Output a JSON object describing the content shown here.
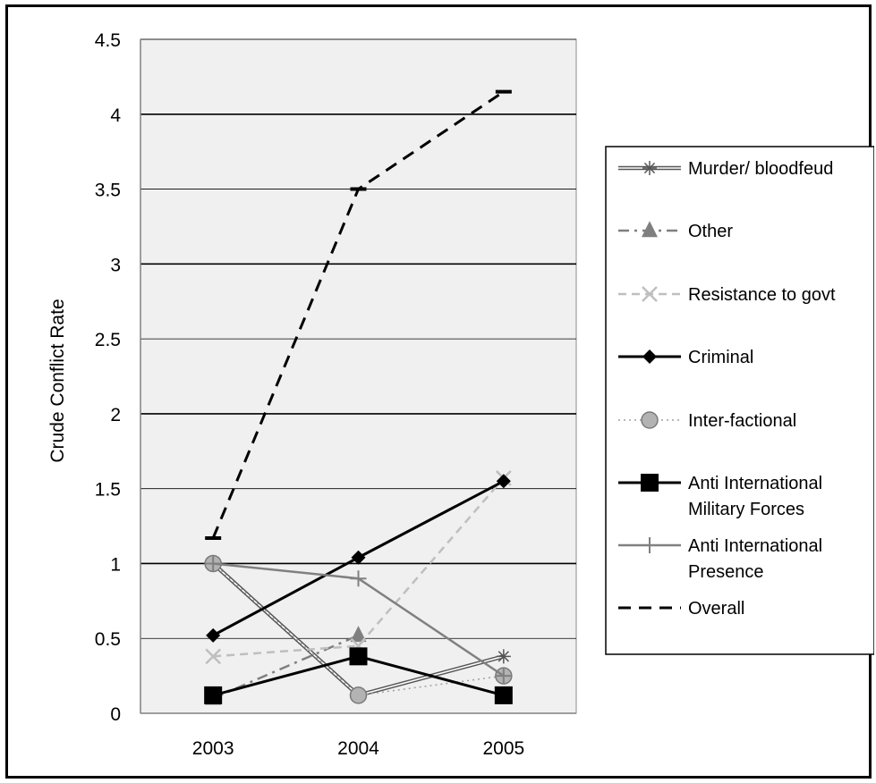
{
  "chart_data": {
    "type": "line",
    "title": "",
    "xlabel": "",
    "ylabel": "Crude Conflict Rate",
    "categories": [
      "2003",
      "2004",
      "2005"
    ],
    "yticks": [
      "0",
      "0.5",
      "1",
      "1.5",
      "2",
      "2.5",
      "3",
      "3.5",
      "4",
      "4.5"
    ],
    "ylim": [
      0,
      4.5
    ],
    "grid": true,
    "legend_position": "right",
    "series": [
      {
        "name": "Murder/ bloodfeud",
        "values": [
          1.0,
          0.12,
          0.38
        ],
        "color": "#555555",
        "marker": "asterisk",
        "dash": "double"
      },
      {
        "name": "Other",
        "values": [
          0.1,
          0.52,
          null
        ],
        "color": "#7f7f7f",
        "marker": "triangle",
        "dash": "dashdot"
      },
      {
        "name": "Resistance to govt",
        "values": [
          0.38,
          0.45,
          1.57
        ],
        "color": "#bfbfbf",
        "marker": "x",
        "dash": "dashed"
      },
      {
        "name": "Criminal",
        "values": [
          0.52,
          1.04,
          1.55
        ],
        "color": "#000000",
        "marker": "diamond",
        "dash": "solid"
      },
      {
        "name": "Inter-factional",
        "values": [
          1.0,
          0.12,
          0.25
        ],
        "color": "#a0a0a0",
        "marker": "circle",
        "dash": "dotted"
      },
      {
        "name": "Anti International\nMilitary Forces",
        "values": [
          0.12,
          0.38,
          0.12
        ],
        "color": "#000000",
        "marker": "square",
        "dash": "solid"
      },
      {
        "name": "Anti International\nPresence",
        "values": [
          1.0,
          0.9,
          0.25
        ],
        "color": "#808080",
        "marker": "plus",
        "dash": "solid"
      },
      {
        "name": "Overall",
        "values": [
          1.17,
          3.5,
          4.15
        ],
        "color": "#000000",
        "marker": "dash",
        "dash": "bigdash"
      }
    ]
  }
}
